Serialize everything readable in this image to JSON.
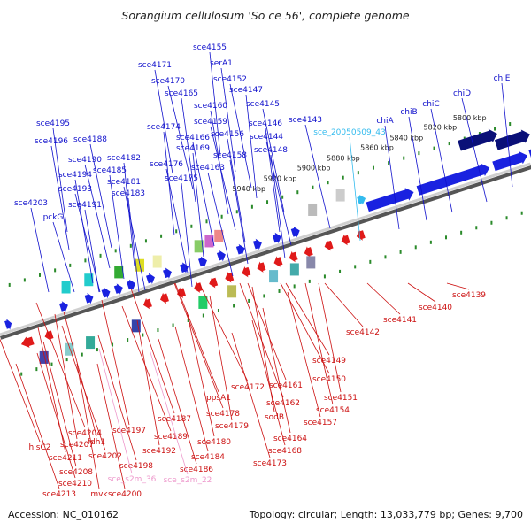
{
  "title": "Sorangium cellulosum 'So ce 56', complete genome",
  "accession": "Accession: NC_010162",
  "summary": "Topology: circular; Length: 13,033,779 bp; Genes: 9,700",
  "colors": {
    "forward": "#1a22e0",
    "reverse": "#e01a1a",
    "special": "#33bbee",
    "scaffold": "#555555",
    "ticks": "#2a8a2a"
  },
  "scale_labels": [
    "5800 kbp",
    "5820 kbp",
    "5840 kbp",
    "5860 kbp",
    "5880 kbp",
    "5900 kbp",
    "5920 kbp",
    "5940 kbp"
  ],
  "top_labels": [
    "sce4155",
    "serA1",
    "sce4171",
    "sce4152",
    "sce4170",
    "sce4147",
    "sce4165",
    "sce4160",
    "sce4145",
    "sce4159",
    "sce4174",
    "sce4146",
    "sce4156",
    "sce4166",
    "sce4144",
    "sce4169",
    "sce4148",
    "sce4158",
    "sce4176",
    "sce4163",
    "sce4175",
    "sce4195",
    "sce4196",
    "sce4188",
    "sce4190",
    "sce4182",
    "sce4185",
    "sce4194",
    "sce4181",
    "sce4193",
    "sce4183",
    "sce4191",
    "sce4203",
    "pckG",
    "sce4143",
    "sce_20050509_43",
    "chiA",
    "chiB",
    "chiC",
    "chiD",
    "chiE"
  ],
  "bottom_labels": [
    "sce4139",
    "sce4140",
    "sce4141",
    "sce4142",
    "sce4149",
    "sce4150",
    "sce4151",
    "sce4154",
    "sce4157",
    "sce4161",
    "sce4162",
    "sce4172",
    "sodB",
    "sce4164",
    "sce4168",
    "sce4173",
    "ppsA1",
    "sce4178",
    "sce4179",
    "sce4180",
    "sce4184",
    "sce4186",
    "sce4187",
    "sce4189",
    "sce4192",
    "sce4197",
    "fdh1",
    "sce4198",
    "sce4202",
    "sce4204",
    "sce4207",
    "sce4211",
    "sce4208",
    "sce4210",
    "sce4213",
    "hisC2",
    "mvk",
    "sce4200",
    "sce_s2m_36",
    "sce_s2m_22"
  ],
  "pink_labels": [
    "sce_s2m_36",
    "sce_s2m_22"
  ]
}
